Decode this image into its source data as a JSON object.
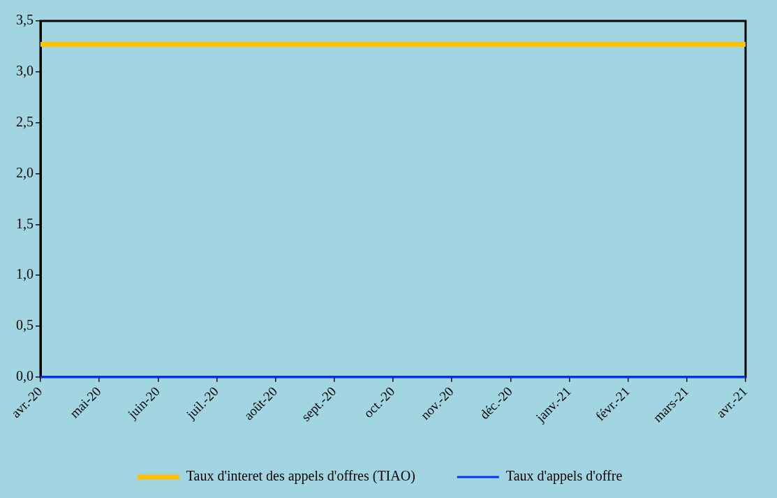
{
  "chart_data": {
    "type": "line",
    "categories": [
      "avr.-20",
      "mai-20",
      "juin-20",
      "juil.-20",
      "août-20",
      "sept.-20",
      "oct.-20",
      "nov.-20",
      "déc.-20",
      "janv.-21",
      "févr.-21",
      "mars-21",
      "avr.-21"
    ],
    "series": [
      {
        "name": "Taux d'interet des appels d'offres (TIAO)",
        "color": "#ffc000",
        "values": [
          3.27,
          3.27,
          3.27,
          3.27,
          3.27,
          3.27,
          3.27,
          3.27,
          3.27,
          3.27,
          3.27,
          3.27,
          3.27
        ]
      },
      {
        "name": "Taux d'appels d'offre",
        "color": "#0033ff",
        "values": [
          0,
          0,
          0,
          0,
          0,
          0,
          0,
          0,
          0,
          0,
          0,
          0,
          0
        ]
      }
    ],
    "ylim": [
      0,
      3.5
    ],
    "yticks": [
      {
        "value": 0,
        "label": "0,0"
      },
      {
        "value": 0.5,
        "label": "0,5"
      },
      {
        "value": 1,
        "label": "1,0"
      },
      {
        "value": 1.5,
        "label": "1,5"
      },
      {
        "value": 2,
        "label": "2,0"
      },
      {
        "value": 2.5,
        "label": "2,5"
      },
      {
        "value": 3,
        "label": "3,0"
      },
      {
        "value": 3.5,
        "label": "3,5"
      }
    ],
    "grid": false,
    "legend": "bottom",
    "marker": "none",
    "line_style": "solid"
  }
}
